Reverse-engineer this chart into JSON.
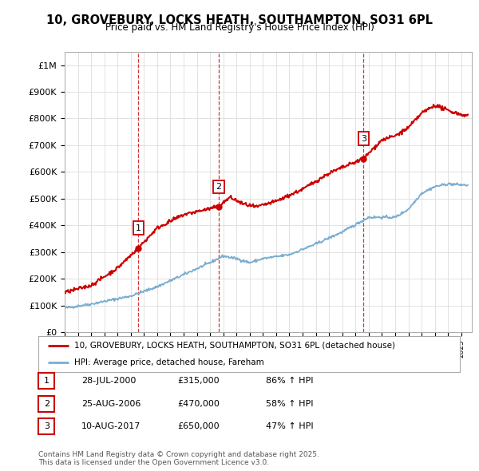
{
  "title_line1": "10, GROVEBURY, LOCKS HEATH, SOUTHAMPTON, SO31 6PL",
  "title_line2": "Price paid vs. HM Land Registry's House Price Index (HPI)",
  "background_color": "#ffffff",
  "plot_bg_color": "#ffffff",
  "grid_color": "#dddddd",
  "red_color": "#cc0000",
  "blue_color": "#7aadd0",
  "ylim": [
    0,
    1050000
  ],
  "yticks": [
    0,
    100000,
    200000,
    300000,
    400000,
    500000,
    600000,
    700000,
    800000,
    900000,
    1000000
  ],
  "ytick_labels": [
    "£0",
    "£100K",
    "£200K",
    "£300K",
    "£400K",
    "£500K",
    "£600K",
    "£700K",
    "£800K",
    "£900K",
    "£1M"
  ],
  "sale1_date": 2000.57,
  "sale1_price": 315000,
  "sale2_date": 2006.65,
  "sale2_price": 470000,
  "sale3_date": 2017.61,
  "sale3_price": 650000,
  "legend_label_red": "10, GROVEBURY, LOCKS HEATH, SOUTHAMPTON, SO31 6PL (detached house)",
  "legend_label_blue": "HPI: Average price, detached house, Fareham",
  "table_rows": [
    {
      "num": "1",
      "date": "28-JUL-2000",
      "price": "£315,000",
      "hpi": "86% ↑ HPI"
    },
    {
      "num": "2",
      "date": "25-AUG-2006",
      "price": "£470,000",
      "hpi": "58% ↑ HPI"
    },
    {
      "num": "3",
      "date": "10-AUG-2017",
      "price": "£650,000",
      "hpi": "47% ↑ HPI"
    }
  ],
  "footer": "Contains HM Land Registry data © Crown copyright and database right 2025.\nThis data is licensed under the Open Government Licence v3.0."
}
